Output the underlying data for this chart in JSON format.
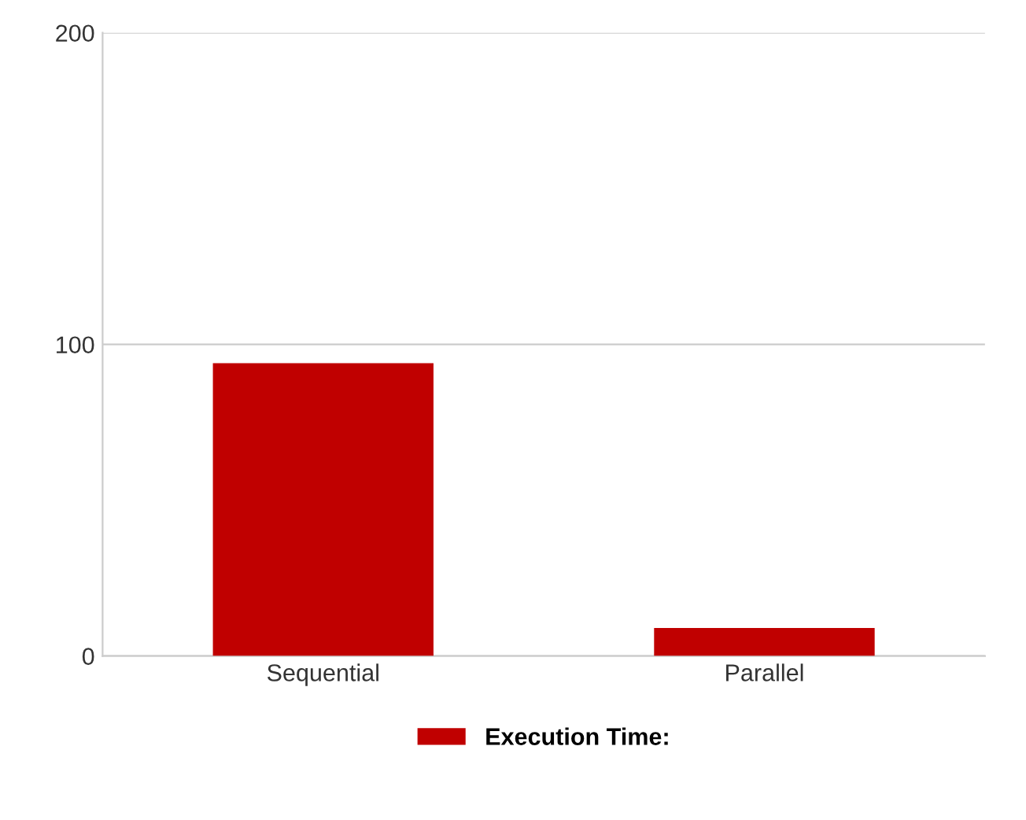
{
  "chart_data": {
    "type": "bar",
    "categories": [
      "Sequential",
      "Parallel"
    ],
    "series": [
      {
        "name": "Execution Time:",
        "color": "#c00000",
        "values": [
          94,
          9
        ]
      }
    ],
    "ylim": [
      0,
      200
    ],
    "yticks": [
      0,
      100,
      200
    ],
    "grid": "y",
    "legend": "bottom"
  }
}
